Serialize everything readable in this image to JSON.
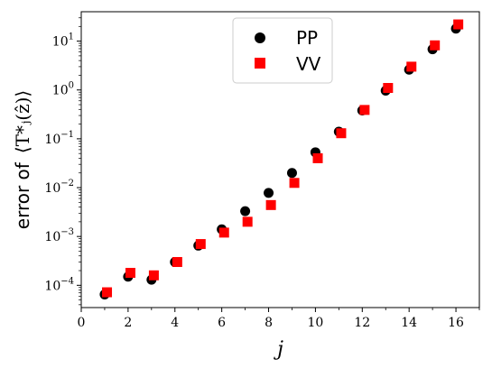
{
  "chart_data": {
    "type": "scatter",
    "xlabel": "j",
    "ylabel_prefix": "error of",
    "ylabel_math": "⟨T*ⱼ(ẑ)⟩",
    "x_ticks": [
      "0",
      "2",
      "4",
      "6",
      "8",
      "10",
      "12",
      "14",
      "16"
    ],
    "xlim": [
      0,
      17
    ],
    "y_scale": "log",
    "ylim": [
      3.5e-05,
      40
    ],
    "y_ticks": [
      {
        "value": 0.0001,
        "base": "10",
        "exp": "−4"
      },
      {
        "value": 0.001,
        "base": "10",
        "exp": "−3"
      },
      {
        "value": 0.01,
        "base": "10",
        "exp": "−2"
      },
      {
        "value": 0.1,
        "base": "10",
        "exp": "−1"
      },
      {
        "value": 1,
        "base": "10",
        "exp": "0"
      },
      {
        "value": 10,
        "base": "10",
        "exp": "1"
      }
    ],
    "legend_position": "top-center",
    "series": [
      {
        "name": "PP",
        "marker": "circle",
        "color": "#000000",
        "x": [
          1,
          2,
          3,
          4,
          5,
          6,
          7,
          8,
          9,
          10,
          11,
          12,
          13,
          14,
          15,
          16
        ],
        "y": [
          6.5e-05,
          0.00015,
          0.00013,
          0.0003,
          0.00065,
          0.0014,
          0.0033,
          0.0078,
          0.02,
          0.053,
          0.14,
          0.38,
          0.97,
          2.6,
          6.8,
          18
        ]
      },
      {
        "name": "VV",
        "marker": "square",
        "color": "#ff0000",
        "x": [
          1.1,
          2.1,
          3.1,
          4.1,
          5.1,
          6.1,
          7.1,
          8.1,
          9.1,
          10.1,
          11.1,
          12.1,
          13.1,
          14.1,
          15.1,
          16.1
        ],
        "y": [
          7.2e-05,
          0.00018,
          0.00016,
          0.0003,
          0.0007,
          0.0012,
          0.002,
          0.0044,
          0.0125,
          0.04,
          0.13,
          0.39,
          1.1,
          3.0,
          8.2,
          22
        ]
      }
    ]
  }
}
